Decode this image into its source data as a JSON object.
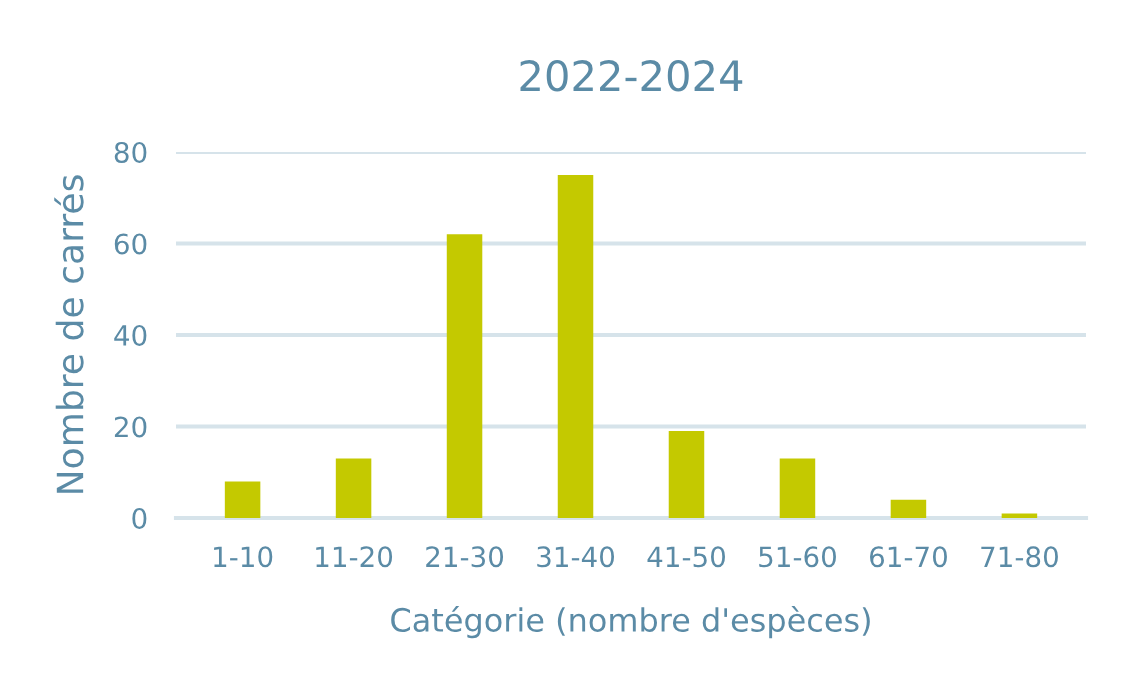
{
  "chart_data": {
    "type": "bar",
    "title": "2022-2024",
    "xlabel": "Catégorie (nombre d'espèces)",
    "ylabel": "Nombre de carrés",
    "categories": [
      "1-10",
      "11-20",
      "21-30",
      "31-40",
      "41-50",
      "51-60",
      "61-70",
      "71-80"
    ],
    "values": [
      8,
      13,
      62,
      75,
      19,
      13,
      4,
      1
    ],
    "color": "#c4c900",
    "ylim": [
      0,
      80
    ],
    "yticks": [
      0,
      20,
      40,
      60,
      80
    ],
    "grid": "y"
  }
}
